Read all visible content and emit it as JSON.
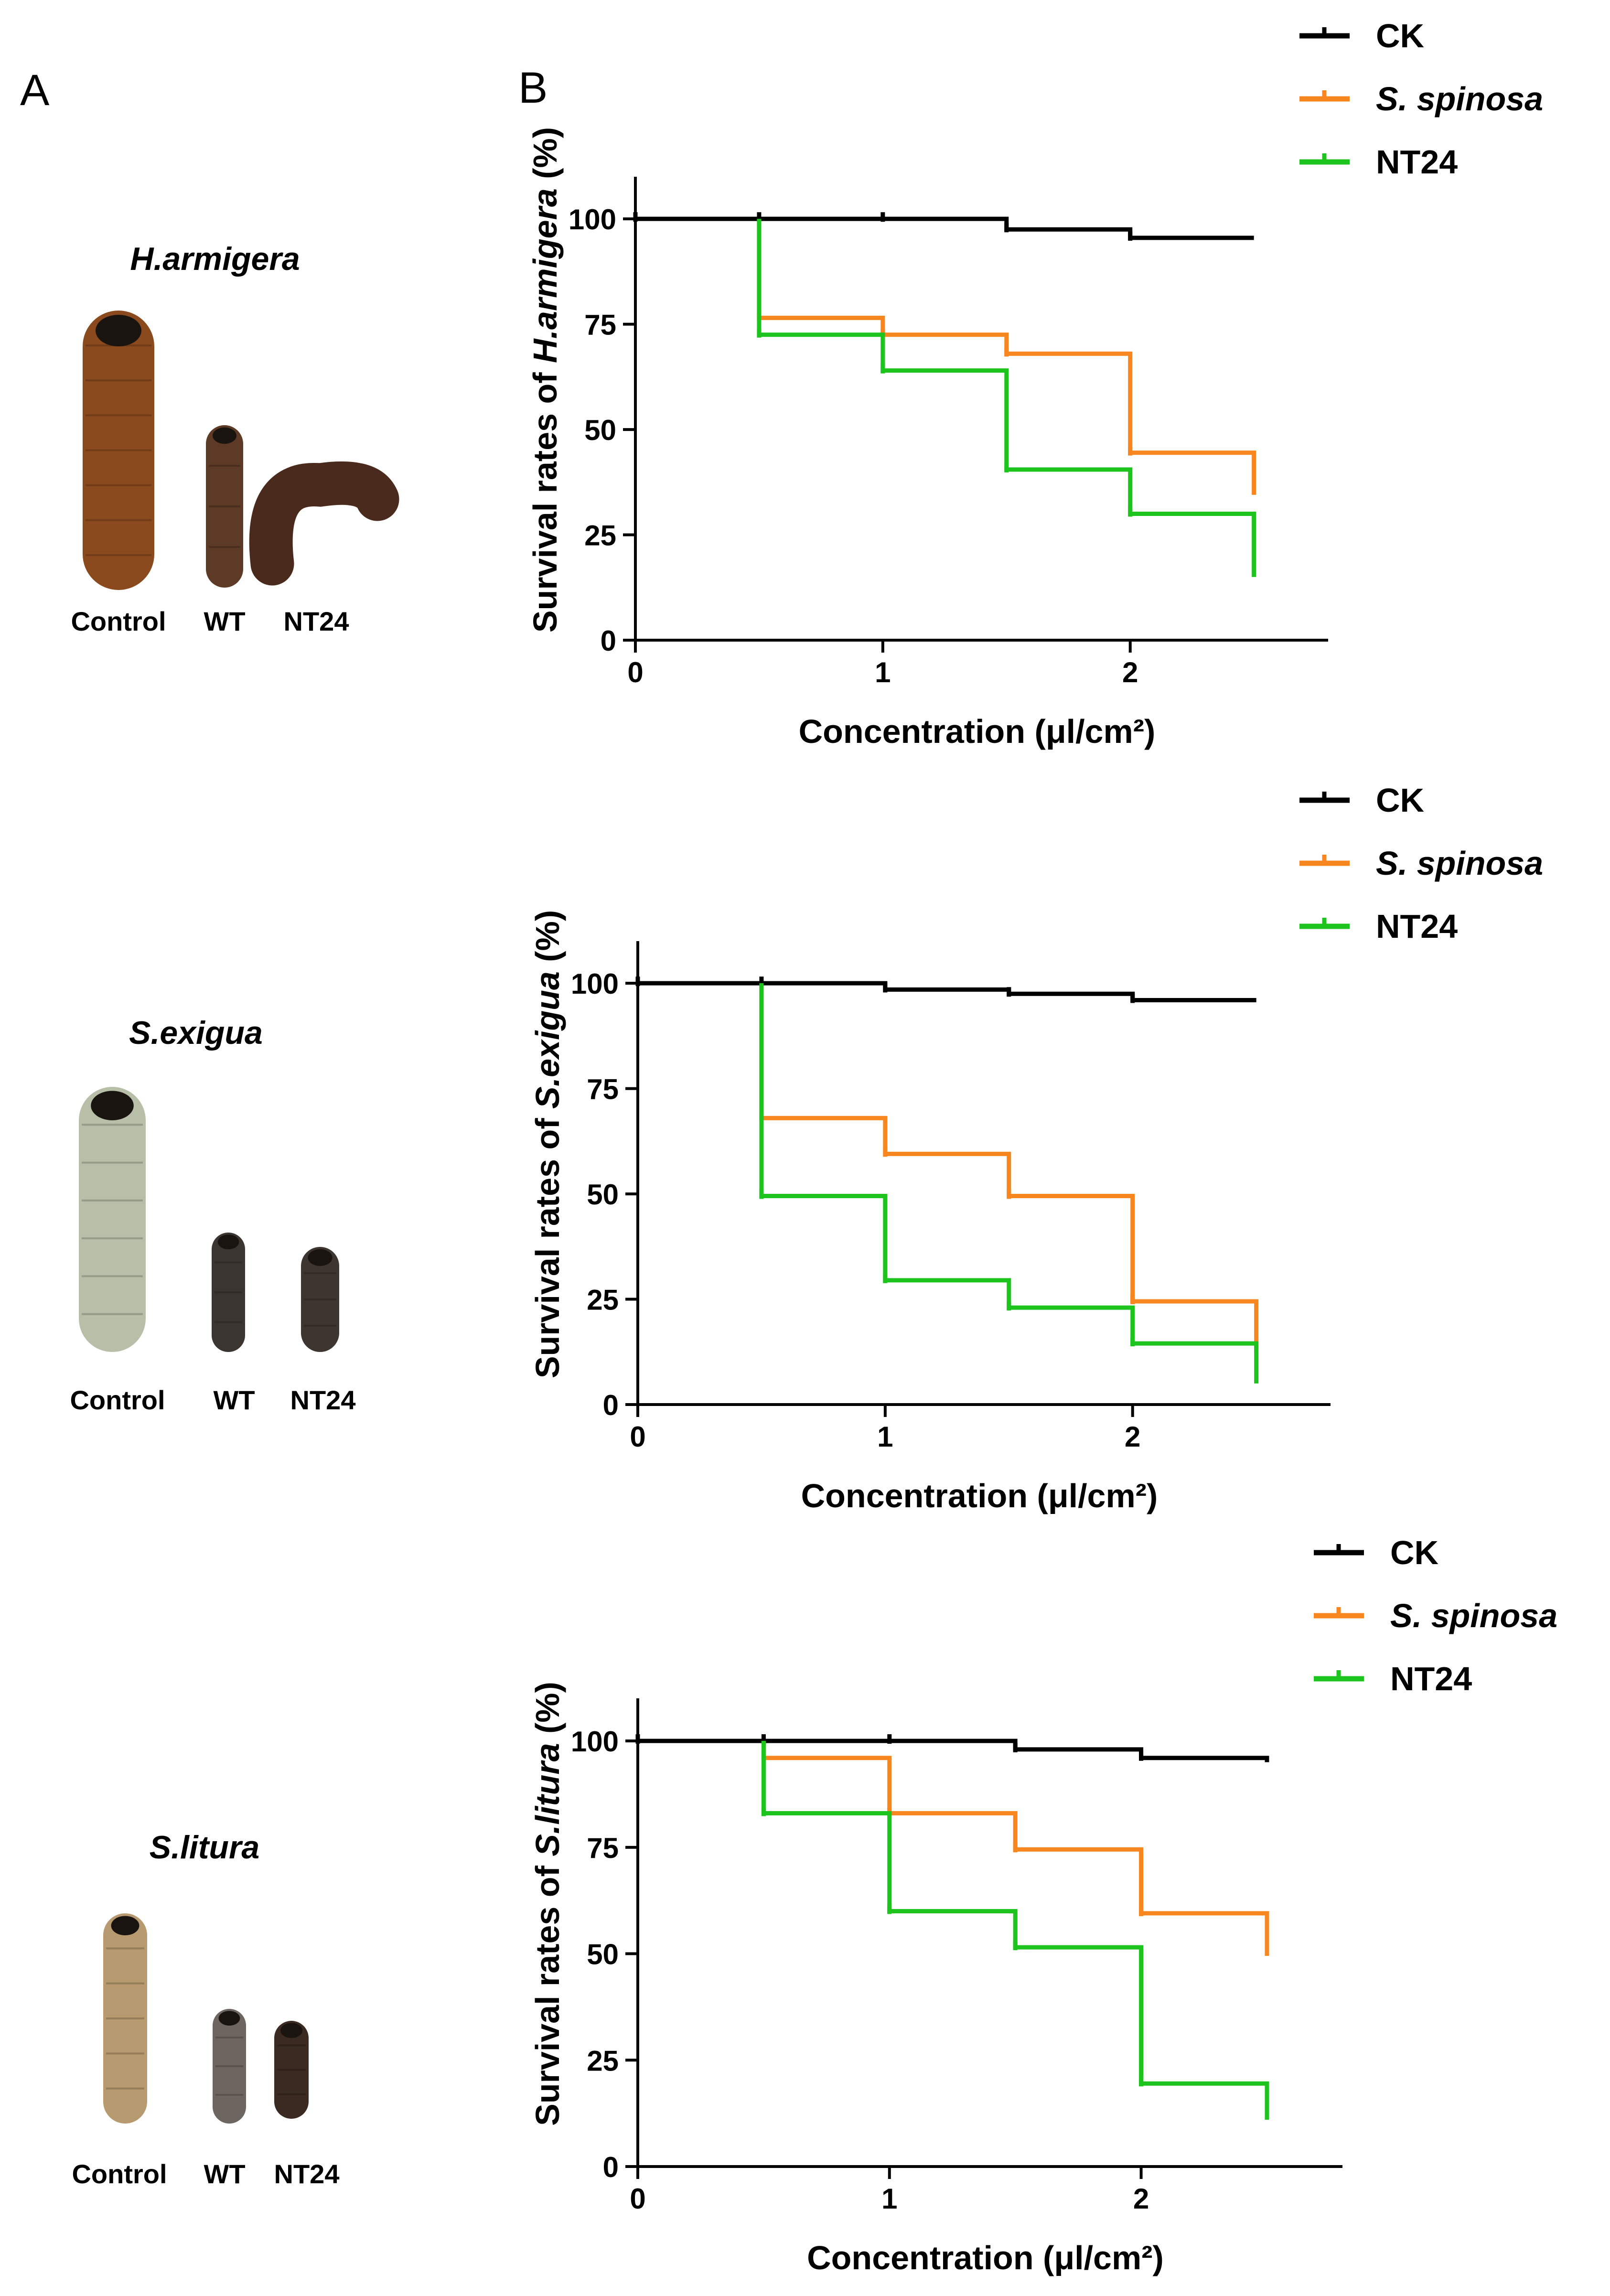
{
  "panel_labels": {
    "a": "A",
    "b": "B"
  },
  "colors": {
    "ck": "#000000",
    "spinosa": "#f7861f",
    "nt24": "#1ec41e",
    "axis": "#000000"
  },
  "legend": [
    {
      "label": "CK",
      "italic": false,
      "color": "#000000"
    },
    {
      "label": "S. spinosa",
      "italic": true,
      "color": "#f7861f"
    },
    {
      "label": "NT24",
      "italic": false,
      "color": "#1ec41e"
    }
  ],
  "species_panels": [
    {
      "species": "H.armigera",
      "labels": [
        "Control",
        "WT",
        "NT24"
      ],
      "body_colors": [
        "#8a4a1e",
        "#5c3a25",
        "#4a2a1c"
      ]
    },
    {
      "species": "S.exigua",
      "labels": [
        "Control",
        "WT",
        "NT24"
      ],
      "body_colors": [
        "#b7bfa8",
        "#3a3530",
        "#3d3530"
      ]
    },
    {
      "species": "S.litura",
      "labels": [
        "Control",
        "WT",
        "NT24"
      ],
      "body_colors": [
        "#b79a70",
        "#6d6560",
        "#3a2a22"
      ]
    }
  ],
  "chart_data": [
    {
      "type": "line",
      "step": true,
      "title": "",
      "xlabel": "Concentration (μl/cm²)",
      "ylabel_prefix": "Survival rates of ",
      "ylabel_species": "H.armigera",
      "ylabel_suffix": " (%)",
      "xlim": [
        0,
        2.8
      ],
      "ylim": [
        0,
        110
      ],
      "xticks": [
        0,
        1,
        2
      ],
      "yticks": [
        0,
        25,
        50,
        75,
        100
      ],
      "series": [
        {
          "name": "CK",
          "x": [
            0,
            0.5,
            1,
            1.5,
            2,
            2.5
          ],
          "values": [
            100,
            100,
            100,
            97.5,
            95.5,
            95.5
          ]
        },
        {
          "name": "S. spinosa",
          "x": [
            0.5,
            1,
            1.5,
            2,
            2.5
          ],
          "values": [
            76.5,
            72.5,
            68,
            44.5,
            44.5
          ]
        },
        {
          "name": "NT24",
          "x": [
            0.5,
            1,
            1.5,
            2,
            2.5
          ],
          "values": [
            72.5,
            64,
            40.5,
            30,
            30
          ]
        }
      ],
      "end_drops": [
        95.5,
        34.5,
        15
      ]
    },
    {
      "type": "line",
      "step": true,
      "title": "",
      "xlabel": "Concentration (μl/cm²)",
      "ylabel_prefix": "Survival rates of ",
      "ylabel_species": "S.exigua",
      "ylabel_suffix": " (%)",
      "xlim": [
        0,
        2.8
      ],
      "ylim": [
        0,
        110
      ],
      "xticks": [
        0,
        1,
        2
      ],
      "yticks": [
        0,
        25,
        50,
        75,
        100
      ],
      "series": [
        {
          "name": "CK",
          "x": [
            0,
            0.5,
            1,
            1.5,
            2,
            2.5
          ],
          "values": [
            100,
            100,
            98.5,
            97.5,
            96,
            96
          ]
        },
        {
          "name": "S. spinosa",
          "x": [
            0.5,
            1,
            1.5,
            2,
            2.5
          ],
          "values": [
            68,
            59.5,
            49.5,
            24.5,
            24.5
          ]
        },
        {
          "name": "NT24",
          "x": [
            0.5,
            1,
            1.5,
            2,
            2.5
          ],
          "values": [
            49.5,
            29.5,
            23,
            14.5,
            14.5
          ]
        }
      ],
      "end_drops": [
        96,
        13,
        5
      ]
    },
    {
      "type": "line",
      "step": true,
      "title": "",
      "xlabel": "Concentration (μl/cm²)",
      "ylabel_prefix": "Survival rates of ",
      "ylabel_species": "S.litura",
      "ylabel_suffix": " (%)",
      "xlim": [
        0,
        2.8
      ],
      "ylim": [
        0,
        110
      ],
      "xticks": [
        0,
        1,
        2
      ],
      "yticks": [
        0,
        25,
        50,
        75,
        100
      ],
      "series": [
        {
          "name": "CK",
          "x": [
            0,
            0.5,
            1,
            1.5,
            2,
            2.5
          ],
          "values": [
            100,
            100,
            100,
            98,
            96,
            96
          ]
        },
        {
          "name": "S. spinosa",
          "x": [
            0.5,
            1,
            1.5,
            2,
            2.5
          ],
          "values": [
            96,
            83,
            74.5,
            59.5,
            59.5
          ]
        },
        {
          "name": "NT24",
          "x": [
            0.5,
            1,
            1.5,
            2,
            2.5
          ],
          "values": [
            83,
            60,
            51.5,
            19.5,
            19.5
          ]
        }
      ],
      "end_drops": [
        95,
        49.5,
        11
      ]
    }
  ]
}
